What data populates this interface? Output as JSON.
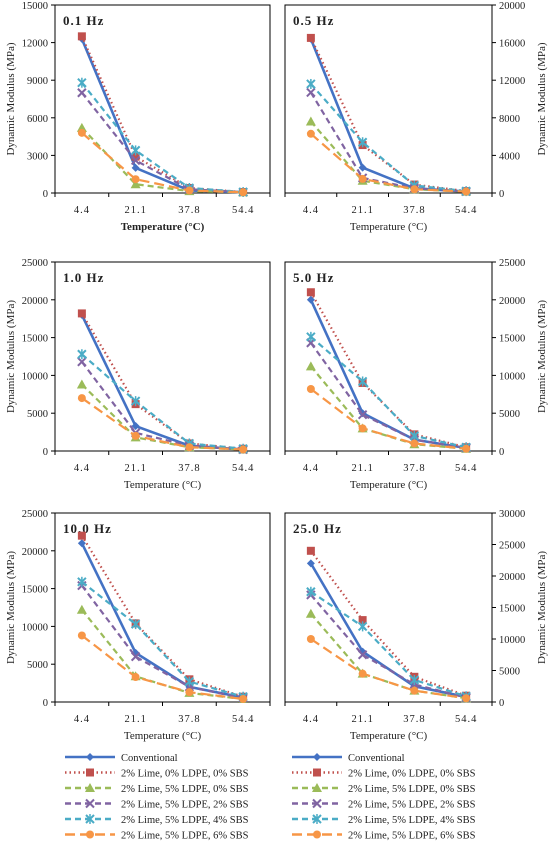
{
  "figure": {
    "x_axis_label": "Temperature (°C)",
    "x_axis_label_bold": "Temperature (°C)",
    "y_axis_label": "Dynamic Modulus (MPa)"
  },
  "legend": {
    "entries": [
      {
        "label": "Conventional",
        "color": "#4472C4",
        "marker": "diamond",
        "dash": "solid"
      },
      {
        "label": "2% Lime, 0% LDPE, 0% SBS",
        "color": "#C0504D",
        "marker": "square",
        "dash": "dot"
      },
      {
        "label": "2% Lime, 5% LDPE, 0% SBS",
        "color": "#9BBB59",
        "marker": "triangle",
        "dash": "dash"
      },
      {
        "label": "2% Lime, 5% LDPE, 2% SBS",
        "color": "#8064A2",
        "marker": "x",
        "dash": "dash"
      },
      {
        "label": "2% Lime, 5% LDPE, 4% SBS",
        "color": "#4BACC6",
        "marker": "star",
        "dash": "dash"
      },
      {
        "label": "2% Lime, 5% LDPE, 6% SBS",
        "color": "#F79646",
        "marker": "circle",
        "dash": "longdash"
      }
    ]
  },
  "chart_data": [
    {
      "type": "line",
      "title": "0.1 Hz",
      "xlabel": "Temperature (°C)",
      "ylabel": "Dynamic Modulus (MPa)",
      "categories": [
        "4.4",
        "21.1",
        "37.8",
        "54.4"
      ],
      "ylim": [
        0,
        15000
      ],
      "yticks": [
        0,
        3000,
        6000,
        9000,
        12000,
        15000
      ],
      "y_axis_side": "left",
      "series": [
        {
          "name": "Conventional",
          "values": [
            12300,
            2000,
            200,
            60
          ]
        },
        {
          "name": "2% Lime, 0% LDPE, 0% SBS",
          "values": [
            12500,
            2900,
            400,
            80
          ]
        },
        {
          "name": "2% Lime, 5% LDPE, 0% SBS",
          "values": [
            5200,
            700,
            150,
            60
          ]
        },
        {
          "name": "2% Lime, 5% LDPE, 2% SBS",
          "values": [
            8000,
            2600,
            300,
            70
          ]
        },
        {
          "name": "2% Lime, 5% LDPE, 4% SBS",
          "values": [
            8800,
            3400,
            400,
            80
          ]
        },
        {
          "name": "2% Lime, 5% LDPE, 6% SBS",
          "values": [
            4800,
            1100,
            200,
            60
          ]
        }
      ]
    },
    {
      "type": "line",
      "title": "0.5 Hz",
      "xlabel": "Temperature (°C)",
      "ylabel": "Dynamic Modulus (MPa)",
      "categories": [
        "4.4",
        "21.1",
        "37.8",
        "54.4"
      ],
      "ylim": [
        0,
        20000
      ],
      "yticks": [
        0,
        4000,
        8000,
        12000,
        16000,
        20000
      ],
      "y_axis_side": "right",
      "series": [
        {
          "name": "Conventional",
          "values": [
            16400,
            2700,
            500,
            150
          ]
        },
        {
          "name": "2% Lime, 0% LDPE, 0% SBS",
          "values": [
            16500,
            5100,
            900,
            200
          ]
        },
        {
          "name": "2% Lime, 5% LDPE, 0% SBS",
          "values": [
            7600,
            1300,
            400,
            150
          ]
        },
        {
          "name": "2% Lime, 5% LDPE, 2% SBS",
          "values": [
            10700,
            1600,
            500,
            150
          ]
        },
        {
          "name": "2% Lime, 5% LDPE, 4% SBS",
          "values": [
            11600,
            5400,
            800,
            200
          ]
        },
        {
          "name": "2% Lime, 5% LDPE, 6% SBS",
          "values": [
            6300,
            1500,
            400,
            150
          ]
        }
      ]
    },
    {
      "type": "line",
      "title": "1.0 Hz",
      "xlabel": "Temperature (°C)",
      "ylabel": "Dynamic Modulus (MPa)",
      "categories": [
        "4.4",
        "21.1",
        "37.8",
        "54.4"
      ],
      "ylim": [
        0,
        25000
      ],
      "yticks": [
        0,
        5000,
        10000,
        15000,
        20000,
        25000
      ],
      "y_axis_side": "left",
      "series": [
        {
          "name": "Conventional",
          "values": [
            18000,
            3300,
            700,
            200
          ]
        },
        {
          "name": "2% Lime, 0% LDPE, 0% SBS",
          "values": [
            18200,
            6200,
            1000,
            300
          ]
        },
        {
          "name": "2% Lime, 5% LDPE, 0% SBS",
          "values": [
            8800,
            1800,
            500,
            200
          ]
        },
        {
          "name": "2% Lime, 5% LDPE, 2% SBS",
          "values": [
            11800,
            2400,
            700,
            200
          ]
        },
        {
          "name": "2% Lime, 5% LDPE, 4% SBS",
          "values": [
            12800,
            6600,
            1000,
            300
          ]
        },
        {
          "name": "2% Lime, 5% LDPE, 6% SBS",
          "values": [
            7000,
            2000,
            500,
            200
          ]
        }
      ]
    },
    {
      "type": "line",
      "title": "5.0 Hz",
      "xlabel": "Temperature (°C)",
      "ylabel": "Dynamic Modulus (MPa)",
      "categories": [
        "4.4",
        "21.1",
        "37.8",
        "54.4"
      ],
      "ylim": [
        0,
        25000
      ],
      "yticks": [
        0,
        5000,
        10000,
        15000,
        20000,
        25000
      ],
      "y_axis_side": "right",
      "series": [
        {
          "name": "Conventional",
          "values": [
            20000,
            5000,
            1500,
            400
          ]
        },
        {
          "name": "2% Lime, 0% LDPE, 0% SBS",
          "values": [
            21000,
            9000,
            2200,
            500
          ]
        },
        {
          "name": "2% Lime, 5% LDPE, 0% SBS",
          "values": [
            11200,
            3000,
            900,
            300
          ]
        },
        {
          "name": "2% Lime, 5% LDPE, 2% SBS",
          "values": [
            14300,
            4800,
            1500,
            400
          ]
        },
        {
          "name": "2% Lime, 5% LDPE, 4% SBS",
          "values": [
            15100,
            9200,
            2000,
            500
          ]
        },
        {
          "name": "2% Lime, 5% LDPE, 6% SBS",
          "values": [
            8200,
            3000,
            1000,
            300
          ]
        }
      ]
    },
    {
      "type": "line",
      "title": "10.0 Hz",
      "xlabel": "Temperature (°C)",
      "ylabel": "Dynamic Modulus (MPa)",
      "categories": [
        "4.4",
        "21.1",
        "37.8",
        "54.4"
      ],
      "ylim": [
        0,
        25000
      ],
      "yticks": [
        0,
        5000,
        10000,
        15000,
        20000,
        25000
      ],
      "y_axis_side": "left",
      "series": [
        {
          "name": "Conventional",
          "values": [
            21000,
            6500,
            2000,
            600
          ]
        },
        {
          "name": "2% Lime, 0% LDPE, 0% SBS",
          "values": [
            22000,
            10400,
            3000,
            700
          ]
        },
        {
          "name": "2% Lime, 5% LDPE, 0% SBS",
          "values": [
            12200,
            3400,
            1200,
            400
          ]
        },
        {
          "name": "2% Lime, 5% LDPE, 2% SBS",
          "values": [
            15400,
            6000,
            2000,
            500
          ]
        },
        {
          "name": "2% Lime, 5% LDPE, 4% SBS",
          "values": [
            15900,
            10300,
            2700,
            700
          ]
        },
        {
          "name": "2% Lime, 5% LDPE, 6% SBS",
          "values": [
            8800,
            3300,
            1300,
            400
          ]
        }
      ]
    },
    {
      "type": "line",
      "title": "25.0 Hz",
      "xlabel": "Temperature (°C)",
      "ylabel": "Dynamic Modulus (MPa)",
      "categories": [
        "4.4",
        "21.1",
        "37.8",
        "54.4"
      ],
      "ylim": [
        0,
        30000
      ],
      "yticks": [
        0,
        5000,
        10000,
        15000,
        20000,
        25000,
        30000
      ],
      "y_axis_side": "right",
      "series": [
        {
          "name": "Conventional",
          "values": [
            22000,
            8000,
            2500,
            800
          ]
        },
        {
          "name": "2% Lime, 0% LDPE, 0% SBS",
          "values": [
            24000,
            13000,
            4000,
            1000
          ]
        },
        {
          "name": "2% Lime, 5% LDPE, 0% SBS",
          "values": [
            14000,
            4500,
            1800,
            600
          ]
        },
        {
          "name": "2% Lime, 5% LDPE, 2% SBS",
          "values": [
            17000,
            7500,
            2800,
            700
          ]
        },
        {
          "name": "2% Lime, 5% LDPE, 4% SBS",
          "values": [
            17500,
            12000,
            3500,
            900
          ]
        },
        {
          "name": "2% Lime, 5% LDPE, 6% SBS",
          "values": [
            10000,
            4500,
            1800,
            600
          ]
        }
      ]
    }
  ]
}
